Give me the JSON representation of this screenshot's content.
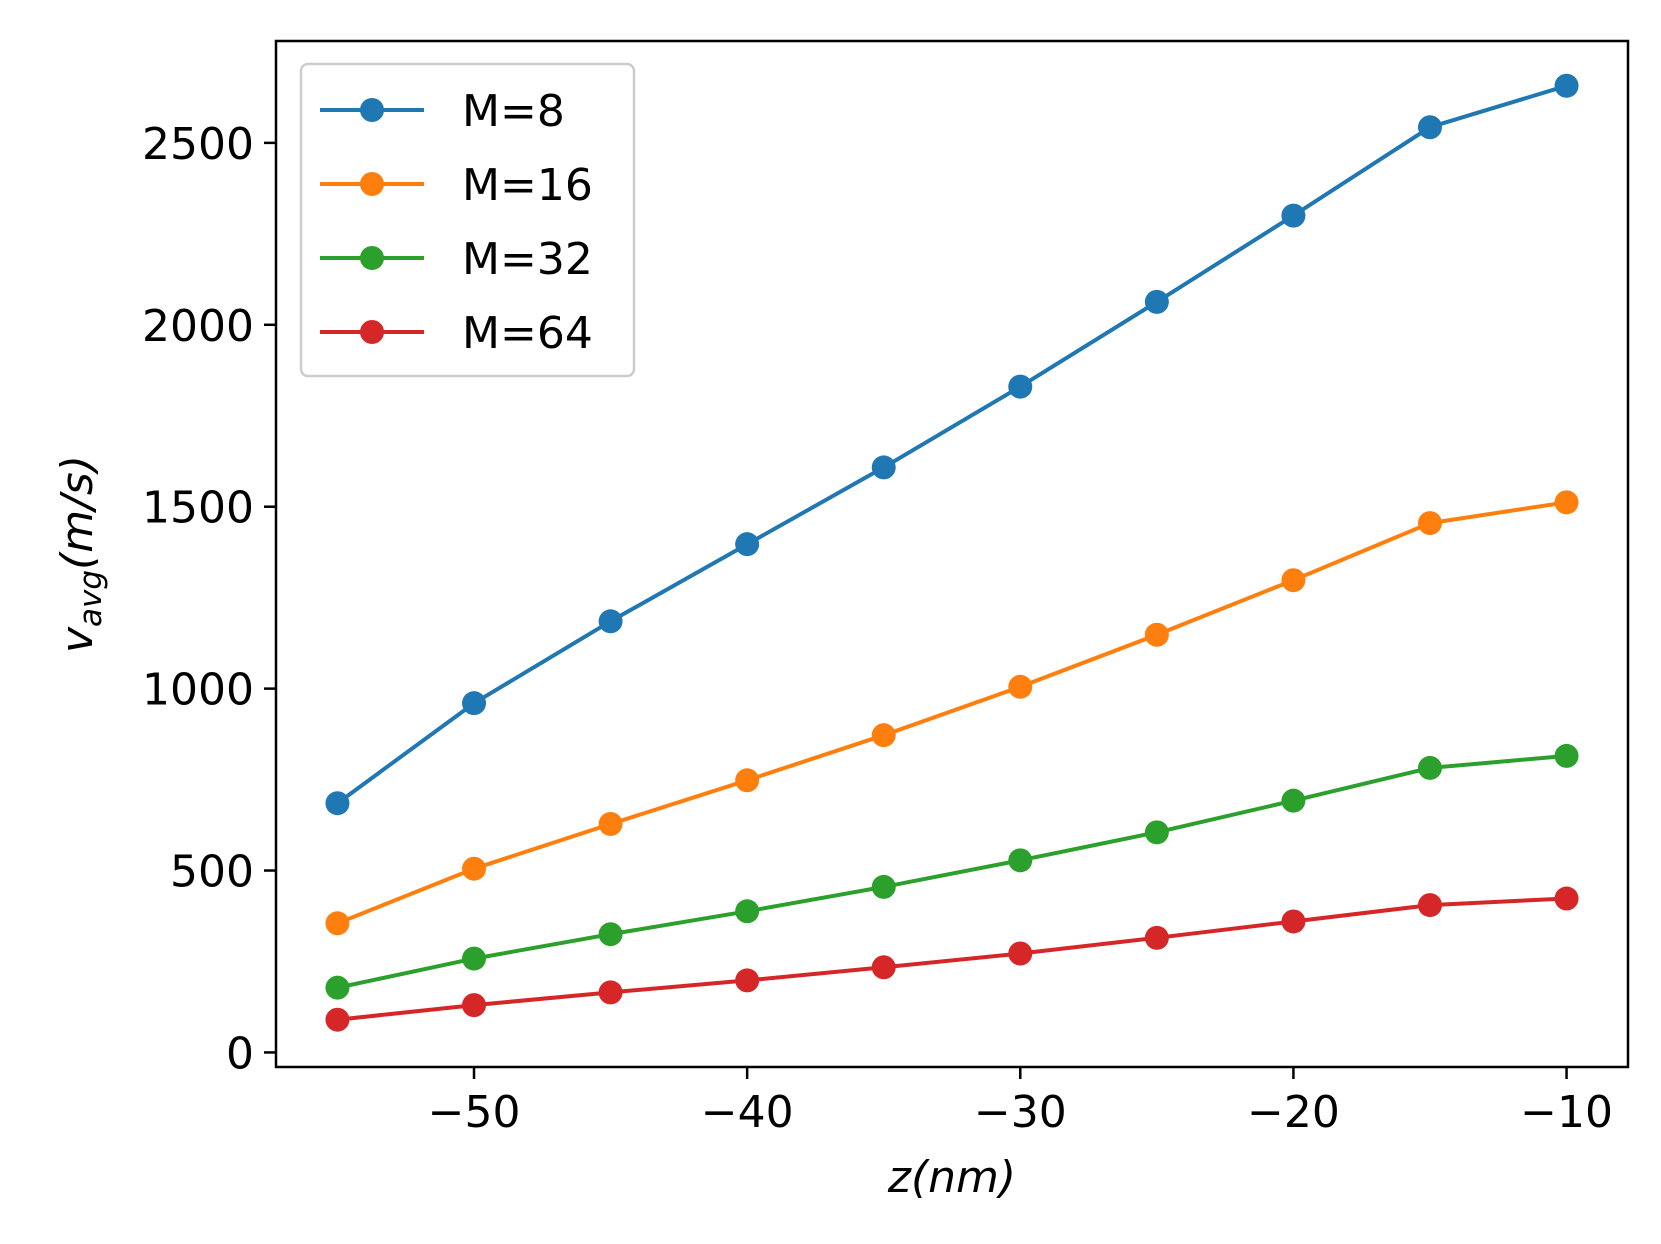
{
  "chart_data": {
    "type": "line",
    "title": "",
    "xlabel": "z(nm)",
    "ylabel": {
      "base": "v",
      "subscript": "avg",
      "rest": "(m/s)"
    },
    "xlim": [
      -57.25,
      -7.75
    ],
    "ylim": [
      -40,
      2780
    ],
    "xticks": [
      -50,
      -40,
      -30,
      -20,
      -10
    ],
    "xtick_labels": [
      "−50",
      "−40",
      "−30",
      "−20",
      "−10"
    ],
    "yticks": [
      0,
      500,
      1000,
      1500,
      2000,
      2500
    ],
    "ytick_labels": [
      "0",
      "500",
      "1000",
      "1500",
      "2000",
      "2500"
    ],
    "grid": false,
    "legend_position": "top-left",
    "x": [
      -55,
      -50,
      -45,
      -40,
      -35,
      -30,
      -25,
      -20,
      -15,
      -10
    ],
    "series": [
      {
        "name": "M=8",
        "color": "#1f77b4",
        "values": [
          685,
          960,
          1185,
          1397,
          1608,
          1830,
          2063,
          2300,
          2543,
          2657
        ]
      },
      {
        "name": "M=16",
        "color": "#ff7f0e",
        "values": [
          355,
          505,
          628,
          748,
          872,
          1005,
          1148,
          1298,
          1455,
          1512
        ]
      },
      {
        "name": "M=32",
        "color": "#2ca02c",
        "values": [
          178,
          258,
          325,
          388,
          455,
          528,
          605,
          692,
          782,
          815
        ]
      },
      {
        "name": "M=64",
        "color": "#d62728",
        "values": [
          90,
          130,
          165,
          198,
          234,
          272,
          315,
          360,
          405,
          423
        ]
      }
    ]
  }
}
